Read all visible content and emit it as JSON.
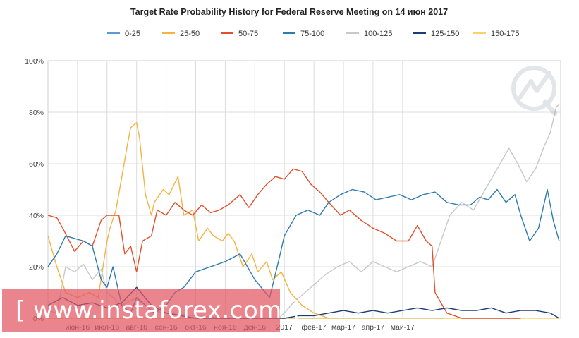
{
  "chart_data": {
    "type": "line",
    "title": "Target Rate Probability History for Federal Reserve Meeting on 14 июн 2017",
    "xlabel": "",
    "ylabel": "",
    "ylim": [
      0,
      100
    ],
    "y_ticks": [
      "0%",
      "20%",
      "40%",
      "60%",
      "80%",
      "100%"
    ],
    "x_ticks": [
      "июн-16",
      "июл-16",
      "авг-16",
      "сен-16",
      "окт-16",
      "ноя-16",
      "дек-16",
      "2017",
      "фев-17",
      "мар-17",
      "апр-17",
      "май-17"
    ],
    "x_note": "x values are months elapsed since 1 May 2016",
    "grid": true,
    "legend_position": "top",
    "series": [
      {
        "name": "0-25",
        "color": "#5b9bd5",
        "x": [
          0,
          13.4
        ],
        "values": [
          0,
          0
        ]
      },
      {
        "name": "25-50",
        "color": "#f5b342",
        "x": [
          0.0,
          0.3,
          0.6,
          1.0,
          1.4,
          1.7,
          2.0,
          2.1,
          2.3,
          2.5,
          2.7,
          2.8,
          3.0,
          3.1,
          3.3,
          3.5,
          3.6,
          3.9,
          4.1,
          4.4,
          4.6,
          4.9,
          5.1,
          5.4,
          5.6,
          5.9,
          6.1,
          6.3,
          6.6,
          6.9,
          7.1,
          7.4,
          7.6,
          7.9,
          8.2,
          8.6,
          9.0,
          9.5
        ],
        "values": [
          32,
          20,
          10,
          8,
          10,
          8,
          30,
          35,
          42,
          55,
          68,
          74,
          76,
          70,
          48,
          40,
          45,
          50,
          48,
          55,
          40,
          42,
          30,
          35,
          32,
          30,
          33,
          30,
          20,
          25,
          18,
          22,
          15,
          18,
          10,
          5,
          2,
          0
        ]
      },
      {
        "name": "50-75",
        "color": "#e0502b",
        "x": [
          0.0,
          0.3,
          0.5,
          0.9,
          1.2,
          1.5,
          1.8,
          2.0,
          2.4,
          2.6,
          2.8,
          3.0,
          3.2,
          3.5,
          3.7,
          4.0,
          4.3,
          4.6,
          4.9,
          5.2,
          5.5,
          5.8,
          6.1,
          6.5,
          6.8,
          7.1,
          7.4,
          7.7,
          8.0,
          8.3,
          8.6,
          8.9,
          9.2,
          9.5,
          9.9,
          10.2,
          10.6,
          11.0,
          11.4,
          11.8,
          12.2,
          12.5,
          12.8,
          13.0,
          13.1,
          13.3,
          13.5,
          14.0,
          15.0,
          16.0
        ],
        "values": [
          40,
          39,
          35,
          26,
          30,
          28,
          38,
          40,
          40,
          25,
          28,
          18,
          30,
          32,
          42,
          40,
          45,
          42,
          40,
          44,
          41,
          42,
          44,
          48,
          43,
          48,
          52,
          55,
          54,
          58,
          57,
          52,
          49,
          45,
          40,
          42,
          38,
          35,
          33,
          30,
          30,
          36,
          30,
          28,
          10,
          6,
          2,
          0,
          0,
          0
        ]
      },
      {
        "name": "75-100",
        "color": "#2e7bb0",
        "x": [
          0.0,
          0.3,
          0.6,
          0.9,
          1.2,
          1.5,
          1.8,
          2.0,
          2.2,
          2.5,
          2.8,
          3.0,
          3.2,
          3.6,
          4.0,
          4.3,
          4.6,
          5.0,
          5.5,
          6.0,
          6.5,
          7.0,
          7.5,
          7.8,
          8.0,
          8.4,
          8.8,
          9.2,
          9.5,
          9.9,
          10.3,
          10.7,
          11.1,
          11.5,
          11.9,
          12.3,
          12.7,
          13.1,
          13.5,
          13.9,
          14.3,
          14.6,
          14.9,
          15.2,
          15.5,
          15.8,
          16.0,
          16.3,
          16.6,
          16.9,
          17.1,
          17.3
        ],
        "values": [
          20,
          25,
          32,
          31,
          30,
          28,
          15,
          12,
          20,
          5,
          2,
          8,
          6,
          2,
          5,
          10,
          12,
          18,
          20,
          22,
          25,
          15,
          8,
          22,
          32,
          40,
          42,
          40,
          45,
          48,
          50,
          49,
          46,
          47,
          48,
          46,
          48,
          49,
          45,
          44,
          44,
          47,
          46,
          50,
          45,
          48,
          40,
          30,
          35,
          50,
          38,
          30
        ]
      },
      {
        "name": "100-125",
        "color": "#c8c8c8",
        "x": [
          0.0,
          0.3,
          0.6,
          0.9,
          1.2,
          1.5,
          1.8,
          2.0,
          2.5,
          3.0,
          3.5,
          4.0,
          5.0,
          6.0,
          7.0,
          7.8,
          8.0,
          8.3,
          8.6,
          9.0,
          9.4,
          9.8,
          10.2,
          10.6,
          11.0,
          11.4,
          11.8,
          12.2,
          12.6,
          13.0,
          13.3,
          13.6,
          14.0,
          14.4,
          14.8,
          15.2,
          15.6,
          15.9,
          16.2,
          16.5,
          16.8,
          17.0,
          17.2,
          17.3
        ],
        "values": [
          3,
          2,
          20,
          18,
          21,
          15,
          19,
          10,
          5,
          8,
          3,
          2,
          1,
          0,
          0,
          0,
          2,
          6,
          9,
          13,
          17,
          20,
          22,
          18,
          22,
          20,
          18,
          20,
          22,
          20,
          30,
          40,
          45,
          42,
          50,
          58,
          66,
          60,
          53,
          58,
          67,
          72,
          82,
          83
        ]
      },
      {
        "name": "125-150",
        "color": "#1c3c78",
        "x": [
          0.0,
          0.5,
          1.0,
          1.5,
          2.0,
          2.5,
          3.0,
          3.5,
          4.0,
          5.0,
          6.0,
          7.0,
          8.0,
          8.5,
          9.0,
          9.5,
          10.0,
          10.5,
          11.0,
          11.5,
          12.0,
          12.5,
          13.0,
          13.5,
          14.0,
          14.5,
          15.0,
          15.5,
          16.0,
          16.5,
          17.0,
          17.3
        ],
        "values": [
          5,
          8,
          5,
          6,
          4,
          6,
          12,
          5,
          2,
          0,
          0,
          0,
          0,
          1,
          1,
          2,
          3,
          2,
          3,
          2,
          3,
          4,
          3,
          4,
          3,
          3,
          4,
          2,
          3,
          3,
          2,
          0
        ]
      },
      {
        "name": "150-175",
        "color": "#f7d36c",
        "x": [
          0,
          17.3
        ],
        "values": [
          0,
          0
        ]
      }
    ]
  },
  "watermark": {
    "text": "[ www.instaforex.com ]"
  }
}
